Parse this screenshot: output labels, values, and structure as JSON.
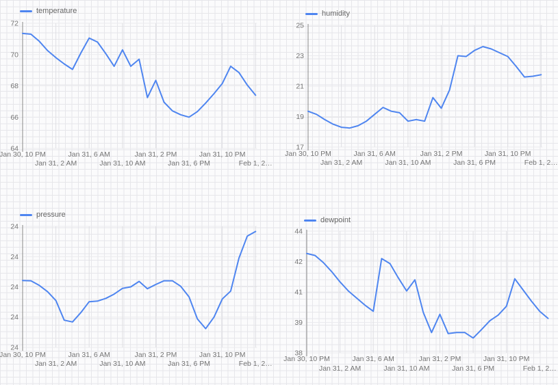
{
  "page": {
    "background": "#fbfbfc",
    "paper_grid_color": "#e6e6ea",
    "axis_color": "#888888",
    "tick_text_color": "#757575",
    "legend_text_color": "#666666",
    "v_gridline_color": "#dfdfe3",
    "h_gridline_color": "#ebebee"
  },
  "chart_data": [
    {
      "type": "line",
      "title": "temperature",
      "line_color": "#4e85f0",
      "legend_position": "top-left",
      "grid": "on",
      "ylim": [
        64,
        72
      ],
      "y_ticks": [
        {
          "label": "72",
          "value": 72
        },
        {
          "label": "70",
          "value": 70
        },
        {
          "label": "68",
          "value": 68
        },
        {
          "label": "66",
          "value": 66
        },
        {
          "label": "64",
          "value": 64
        }
      ],
      "x_ticks": [
        {
          "label": "Jan 30, 10 PM",
          "hour": 0
        },
        {
          "label": "Jan 31, 2 AM",
          "hour": 4
        },
        {
          "label": "Jan 31, 6 AM",
          "hour": 8
        },
        {
          "label": "Jan 31, 10 AM",
          "hour": 12
        },
        {
          "label": "Jan 31, 2 PM",
          "hour": 16
        },
        {
          "label": "Jan 31, 6 PM",
          "hour": 20
        },
        {
          "label": "Jan 31, 10 PM",
          "hour": 24
        },
        {
          "label": "Feb 1, 2…",
          "hour": 28
        }
      ],
      "x_step_hours": 1,
      "values": [
        71.35,
        71.3,
        70.85,
        70.25,
        69.8,
        69.4,
        69.05,
        70.1,
        71.05,
        70.8,
        70.05,
        69.25,
        70.3,
        69.25,
        69.7,
        67.25,
        68.35,
        66.95,
        66.4,
        66.15,
        66,
        66.35,
        66.9,
        67.5,
        68.15,
        69.25,
        68.85,
        68.05,
        67.4
      ]
    },
    {
      "type": "line",
      "title": "humidity",
      "line_color": "#4e85f0",
      "legend_position": "top-left",
      "grid": "on",
      "ylim": [
        17,
        25
      ],
      "y_ticks": [
        {
          "label": "25",
          "value": 25
        },
        {
          "label": "23",
          "value": 23
        },
        {
          "label": "21",
          "value": 21
        },
        {
          "label": "19",
          "value": 19
        },
        {
          "label": "17",
          "value": 17
        }
      ],
      "x_ticks": [
        {
          "label": "Jan 30, 10 PM",
          "hour": 0
        },
        {
          "label": "Jan 31, 2 AM",
          "hour": 4
        },
        {
          "label": "Jan 31, 6 AM",
          "hour": 8
        },
        {
          "label": "Jan 31, 10 AM",
          "hour": 12
        },
        {
          "label": "Jan 31, 2 PM",
          "hour": 16
        },
        {
          "label": "Jan 31, 6 PM",
          "hour": 20
        },
        {
          "label": "Jan 31, 10 PM",
          "hour": 24
        },
        {
          "label": "Feb 1, 2…",
          "hour": 28
        }
      ],
      "x_step_hours": 1,
      "values": [
        19.35,
        19.15,
        18.8,
        18.5,
        18.3,
        18.25,
        18.4,
        18.7,
        19.15,
        19.6,
        19.35,
        19.25,
        18.7,
        18.8,
        18.7,
        20.25,
        19.55,
        20.75,
        23,
        22.95,
        23.35,
        23.6,
        23.45,
        23.2,
        22.95,
        22.3,
        21.6,
        21.65,
        21.75
      ]
    },
    {
      "type": "line",
      "title": "pressure",
      "line_color": "#4e85f0",
      "legend_position": "top-left",
      "grid": "on",
      "ylim": [
        23.9,
        24.3
      ],
      "y_ticks": [
        {
          "label": "24",
          "value": 24.3
        },
        {
          "label": "24",
          "value": 24.2
        },
        {
          "label": "24",
          "value": 24.1
        },
        {
          "label": "24",
          "value": 24.0
        },
        {
          "label": "24",
          "value": 23.9
        }
      ],
      "x_ticks": [
        {
          "label": "Jan 30, 10 PM",
          "hour": 0
        },
        {
          "label": "Jan 31, 2 AM",
          "hour": 4
        },
        {
          "label": "Jan 31, 6 AM",
          "hour": 8
        },
        {
          "label": "Jan 31, 10 AM",
          "hour": 12
        },
        {
          "label": "Jan 31, 2 PM",
          "hour": 16
        },
        {
          "label": "Jan 31, 6 PM",
          "hour": 20
        },
        {
          "label": "Jan 31, 10 PM",
          "hour": 24
        },
        {
          "label": "Feb 1, 2…",
          "hour": 28
        }
      ],
      "x_step_hours": 1,
      "values": [
        24.121,
        24.12,
        24.105,
        24.084,
        24.055,
        23.99,
        23.984,
        24.015,
        24.051,
        24.053,
        24.062,
        24.076,
        24.095,
        24.1,
        24.118,
        24.094,
        24.108,
        24.12,
        24.12,
        24.102,
        24.067,
        23.994,
        23.962,
        24,
        24.06,
        24.086,
        24.195,
        24.268,
        24.283
      ]
    },
    {
      "type": "line",
      "title": "dewpoint",
      "line_color": "#4e85f0",
      "legend_position": "top-left",
      "grid": "on",
      "ylim": [
        38,
        44
      ],
      "y_ticks": [
        {
          "label": "44",
          "value": 44
        },
        {
          "label": "42",
          "value": 42.5
        },
        {
          "label": "41",
          "value": 41
        },
        {
          "label": "39",
          "value": 39.5
        },
        {
          "label": "38",
          "value": 38
        }
      ],
      "x_ticks": [
        {
          "label": "Jan 30, 10 PM",
          "hour": 0
        },
        {
          "label": "Jan 31, 2 AM",
          "hour": 4
        },
        {
          "label": "Jan 31, 6 AM",
          "hour": 8
        },
        {
          "label": "Jan 31, 10 AM",
          "hour": 12
        },
        {
          "label": "Jan 31, 2 PM",
          "hour": 16
        },
        {
          "label": "Jan 31, 6 PM",
          "hour": 20
        },
        {
          "label": "Jan 31, 10 PM",
          "hour": 24
        },
        {
          "label": "Feb 1, 2…",
          "hour": 28
        }
      ],
      "x_step_hours": 1,
      "values": [
        42.9,
        42.8,
        42.45,
        42,
        41.5,
        41.05,
        40.7,
        40.35,
        40.05,
        42.65,
        42.4,
        41.7,
        41.05,
        41.6,
        40,
        39,
        39.9,
        38.95,
        39,
        39,
        38.73,
        39.15,
        39.58,
        39.86,
        40.3,
        41.65,
        41.1,
        40.55,
        40.05,
        39.7
      ]
    }
  ]
}
